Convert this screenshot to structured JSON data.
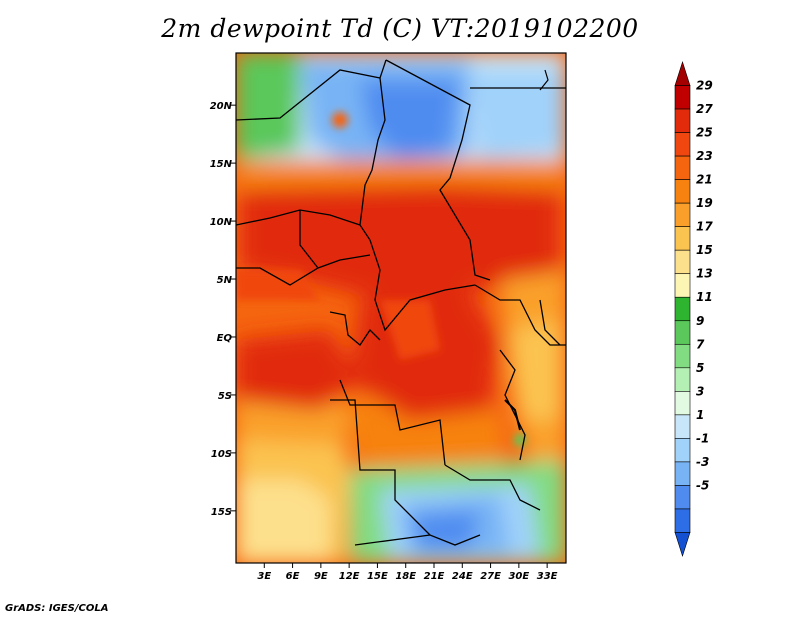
{
  "title": "2m dewpoint Td (C) VT:2019102200",
  "credit": "GrADS: IGES/COLA",
  "map": {
    "lat_labels": [
      "20N",
      "15N",
      "10N",
      "5N",
      "EQ",
      "5S",
      "10S",
      "15S"
    ],
    "lat_values": [
      20,
      15,
      10,
      5,
      0,
      -5,
      -10,
      -15
    ],
    "lon_labels": [
      "3E",
      "6E",
      "9E",
      "12E",
      "15E",
      "18E",
      "21E",
      "24E",
      "27E",
      "30E",
      "33E"
    ],
    "lon_values": [
      3,
      6,
      9,
      12,
      15,
      18,
      21,
      24,
      27,
      30,
      33
    ],
    "lat_range": [
      -19.5,
      24.5
    ],
    "lon_range": [
      0,
      35
    ]
  },
  "colorbar": {
    "levels": [
      "29",
      "27",
      "25",
      "23",
      "21",
      "19",
      "17",
      "15",
      "13",
      "11",
      "9",
      "7",
      "5",
      "3",
      "1",
      "-1",
      "-3",
      "-5"
    ],
    "colors": [
      "#a50000",
      "#c00000",
      "#e12b0a",
      "#f0460f",
      "#f5640f",
      "#f7820f",
      "#faa02a",
      "#fbc350",
      "#fde08c",
      "#fdf5b4",
      "#2fb430",
      "#5ac85a",
      "#82dc82",
      "#b4f0b4",
      "#e1fae1",
      "#c8e6fa",
      "#a0d2fa",
      "#78b4f5",
      "#508cf0",
      "#2d6ee6",
      "#1450d2"
    ]
  }
}
